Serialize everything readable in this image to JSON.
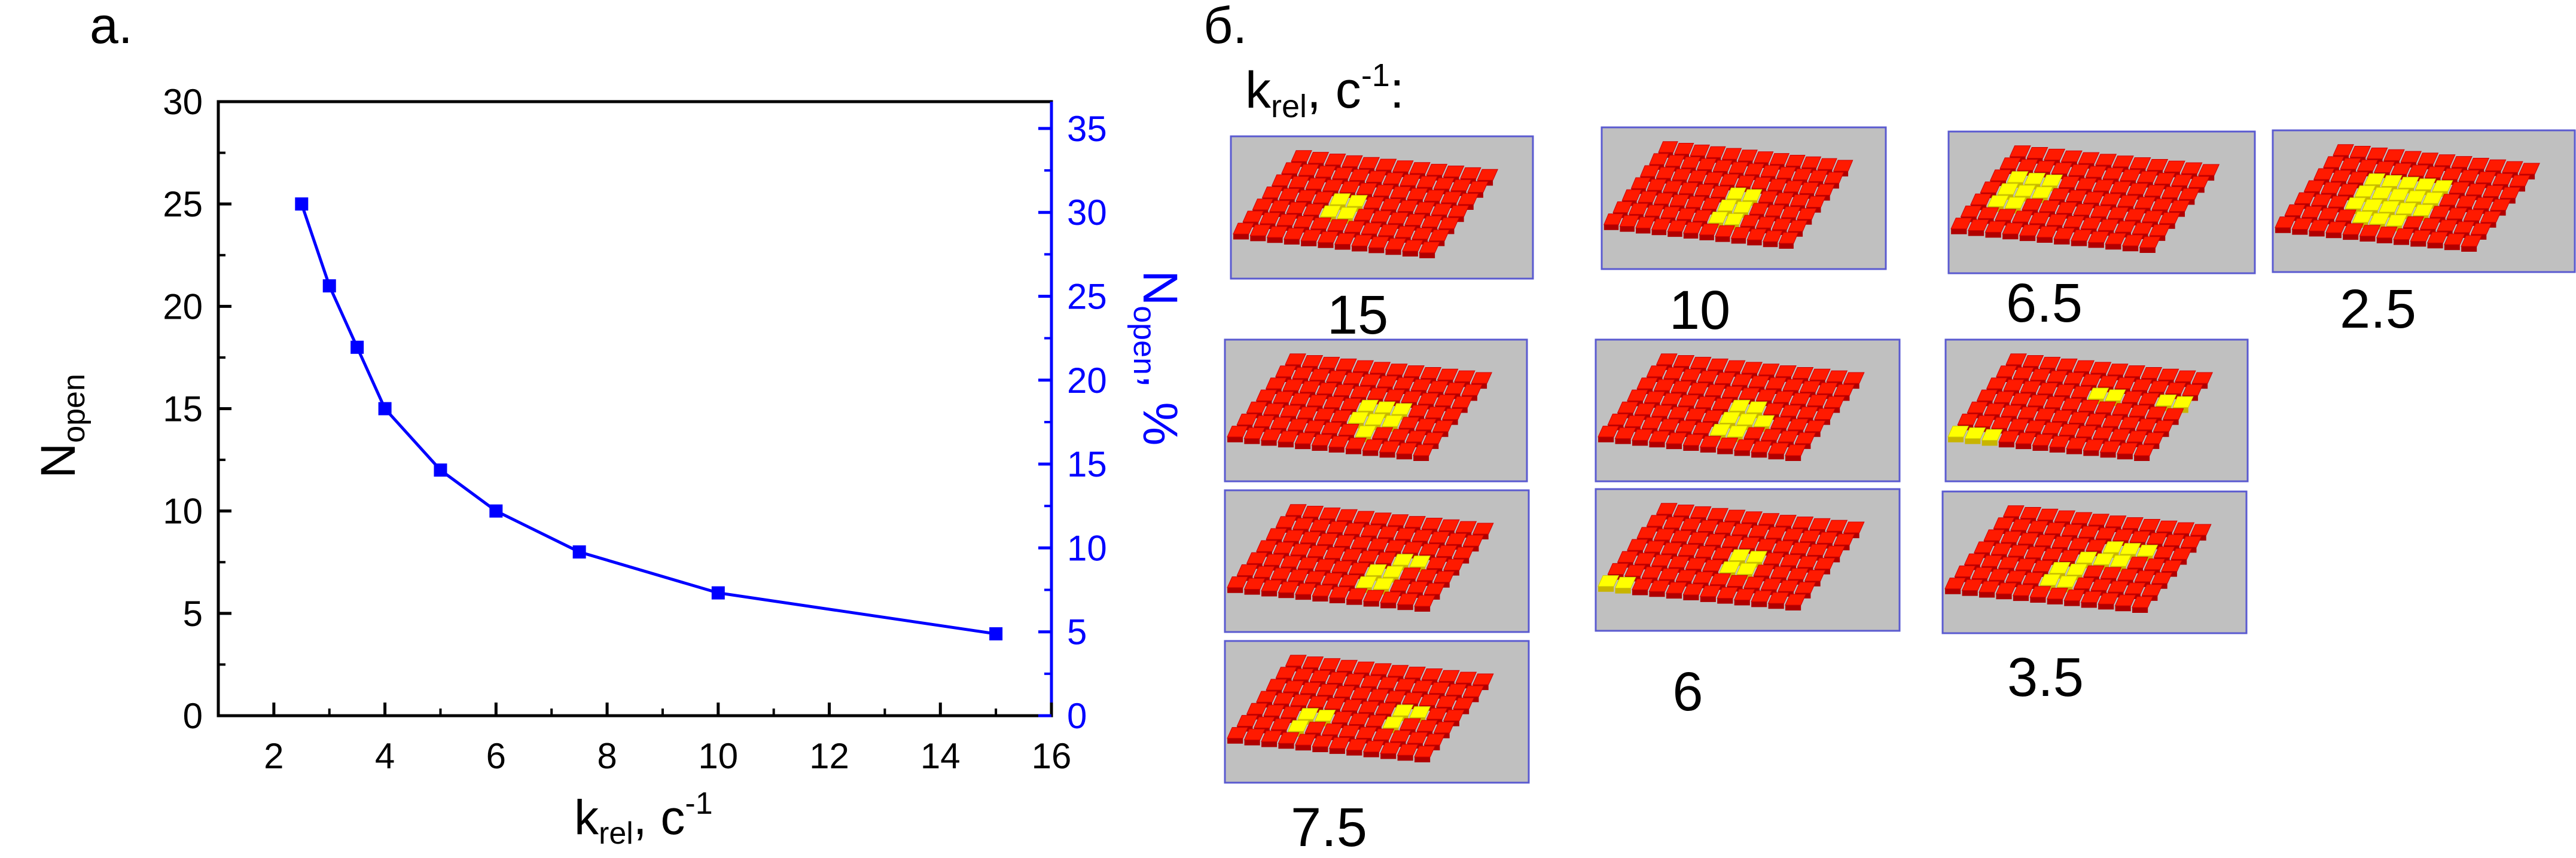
{
  "panel_a_label": "а.",
  "panel_b_label": "б.",
  "colors": {
    "series": "#0000ff",
    "right_axis": "#0000ff",
    "tile_red": "#ff1a00",
    "tile_yellow": "#ffff00",
    "thumb_bg": "#c0c0c0",
    "thumb_border": "#5a5ad0"
  },
  "chart_data": {
    "type": "line",
    "x": [
      2.5,
      3,
      3.5,
      4,
      5,
      6,
      7.5,
      10,
      15
    ],
    "series": [
      {
        "values": [
          25,
          21,
          18,
          15,
          12,
          10,
          8,
          6,
          4
        ]
      }
    ],
    "xlabel": {
      "main": "k",
      "sub": "rel",
      "tail": ", c",
      "sup": "-1"
    },
    "ylabel": {
      "main": "N",
      "sub": "open"
    },
    "y2label": {
      "main": "N",
      "sub": "open",
      "tail": ", %"
    },
    "xlim": [
      1,
      16
    ],
    "ylim": [
      0,
      30
    ],
    "y2lim": [
      0,
      36.6
    ],
    "xticks": [
      "2",
      "4",
      "6",
      "8",
      "10",
      "12",
      "14",
      "16"
    ],
    "yticks": [
      "0",
      "5",
      "10",
      "15",
      "20",
      "25",
      "30"
    ],
    "y2ticks": [
      "0",
      "5",
      "10",
      "15",
      "20",
      "25",
      "30",
      "35"
    ],
    "marker": "square",
    "grid": false
  },
  "panel_b": {
    "heading": {
      "main": "k",
      "sub": "rel",
      "tail": ", c",
      "sup": "-1",
      "colon": ":"
    },
    "labels": [
      "15",
      "10",
      "6.5",
      "2.5",
      "6",
      "3.5",
      "7.5"
    ]
  }
}
